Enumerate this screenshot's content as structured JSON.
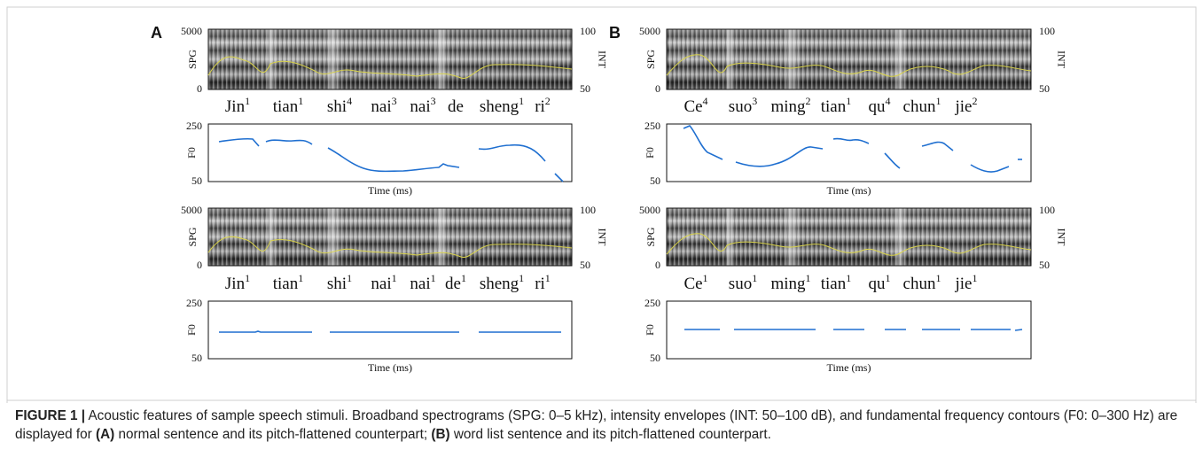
{
  "panels": [
    {
      "label": "A",
      "rows": [
        {
          "spg": {
            "y_label": "SPG",
            "yticks": [
              5000,
              0
            ],
            "y2_label": "INT",
            "y2ticks": [
              100,
              50
            ]
          },
          "syllables": [
            {
              "text": "Jin",
              "tone": "1"
            },
            {
              "text": "tian",
              "tone": "1"
            },
            {
              "text": "shi",
              "tone": "4"
            },
            {
              "text": "nai",
              "tone": "3"
            },
            {
              "text": "nai",
              "tone": "3"
            },
            {
              "text": "de"
            },
            {
              "text": "sheng",
              "tone": "1"
            },
            {
              "text": "ri",
              "tone": "2"
            }
          ],
          "f0": {
            "y_label": "F0",
            "yticks": [
              250,
              50
            ],
            "x_label": "Time (ms)"
          }
        },
        {
          "spg": {
            "y_label": "SPG",
            "yticks": [
              5000,
              0
            ],
            "y2_label": "INT",
            "y2ticks": [
              100,
              50
            ]
          },
          "syllables": [
            {
              "text": "Jin",
              "tone": "1"
            },
            {
              "text": "tian",
              "tone": "1"
            },
            {
              "text": "shi",
              "tone": "1"
            },
            {
              "text": "nai",
              "tone": "1"
            },
            {
              "text": "nai",
              "tone": "1"
            },
            {
              "text": "de",
              "tone": "1"
            },
            {
              "text": "sheng",
              "tone": "1"
            },
            {
              "text": "ri",
              "tone": "1"
            }
          ],
          "f0": {
            "y_label": "F0",
            "yticks": [
              250,
              50
            ],
            "x_label": "Time (ms)"
          }
        }
      ]
    },
    {
      "label": "B",
      "rows": [
        {
          "spg": {
            "y_label": "SPG",
            "yticks": [
              5000,
              0
            ],
            "y2_label": "INT",
            "y2ticks": [
              100,
              50
            ]
          },
          "syllables": [
            {
              "text": "Ce",
              "tone": "4"
            },
            {
              "text": "suo",
              "tone": "3"
            },
            {
              "text": "ming",
              "tone": "2"
            },
            {
              "text": "tian",
              "tone": "1"
            },
            {
              "text": "qu",
              "tone": "4"
            },
            {
              "text": "chun",
              "tone": "1"
            },
            {
              "text": "jie",
              "tone": "2"
            }
          ],
          "f0": {
            "y_label": "F0",
            "yticks": [
              250,
              50
            ],
            "x_label": "Time (ms)"
          }
        },
        {
          "spg": {
            "y_label": "SPG",
            "yticks": [
              5000,
              0
            ],
            "y2_label": "INT",
            "y2ticks": [
              100,
              50
            ]
          },
          "syllables": [
            {
              "text": "Ce",
              "tone": "1"
            },
            {
              "text": "suo",
              "tone": "1"
            },
            {
              "text": "ming",
              "tone": "1"
            },
            {
              "text": "tian",
              "tone": "1"
            },
            {
              "text": "qu",
              "tone": "1"
            },
            {
              "text": "chun",
              "tone": "1"
            },
            {
              "text": "jie",
              "tone": "1"
            }
          ],
          "f0": {
            "y_label": "F0",
            "yticks": [
              250,
              50
            ],
            "x_label": "Time (ms)"
          }
        }
      ]
    }
  ],
  "caption": {
    "label": "FIGURE 1 |",
    "text_1": " Acoustic features of sample speech stimuli. Broadband spectrograms (SPG: 0–5 kHz), intensity envelopes (INT: 50–100 dB), and fundamental frequency contours (F0: 0–300 Hz) are displayed for ",
    "part_a": "(A)",
    "text_2": " normal sentence and its pitch-flattened counterpart; ",
    "part_b": "(B)",
    "text_3": " word list sentence and its pitch-flattened counterpart."
  }
}
